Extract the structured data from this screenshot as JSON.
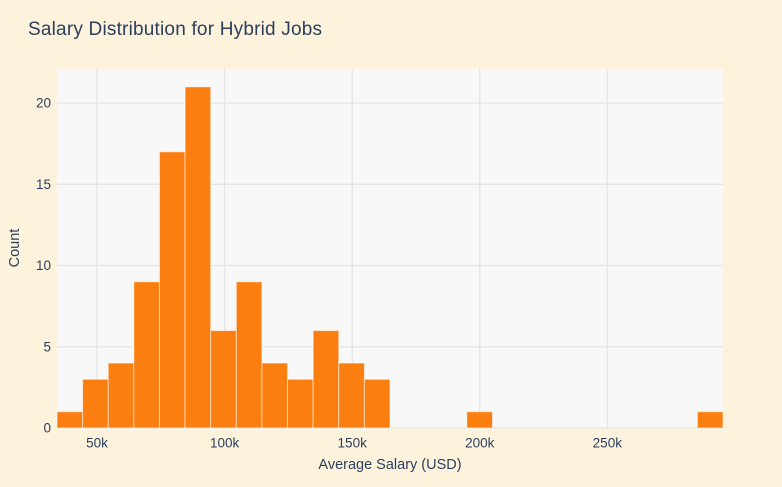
{
  "chart_data": {
    "type": "bar",
    "subtype": "histogram",
    "title": "Salary Distribution for Hybrid Jobs",
    "xlabel": "Average Salary (USD)",
    "ylabel": "Count",
    "bin_start": 34300,
    "bin_width": 10040,
    "counts": [
      1,
      3,
      4,
      9,
      17,
      21,
      6,
      9,
      4,
      3,
      6,
      4,
      3,
      0,
      0,
      0,
      1,
      0,
      0,
      0,
      0,
      0,
      0,
      0,
      0,
      1
    ],
    "total_observations": 92,
    "x_range": [
      34300,
      295340
    ],
    "y_range": [
      0,
      22.1
    ],
    "x_ticks": [
      {
        "value": 50000,
        "label": "50k"
      },
      {
        "value": 100000,
        "label": "100k"
      },
      {
        "value": 150000,
        "label": "150k"
      },
      {
        "value": 200000,
        "label": "200k"
      },
      {
        "value": 250000,
        "label": "250k"
      }
    ],
    "y_ticks": [
      {
        "value": 0,
        "label": "0"
      },
      {
        "value": 5,
        "label": "5"
      },
      {
        "value": 10,
        "label": "10"
      },
      {
        "value": 15,
        "label": "15"
      },
      {
        "value": 20,
        "label": "20"
      }
    ],
    "grid": true,
    "legend": false,
    "colors": {
      "bar": "#fb7e11",
      "bar_separator": "rgba(255,255,255,0.55)",
      "paper_bg": "#fdf3dd",
      "plot_bg": "#f8f8f8",
      "grid": "#e5e5e6",
      "text": "#2b3f5c"
    }
  }
}
